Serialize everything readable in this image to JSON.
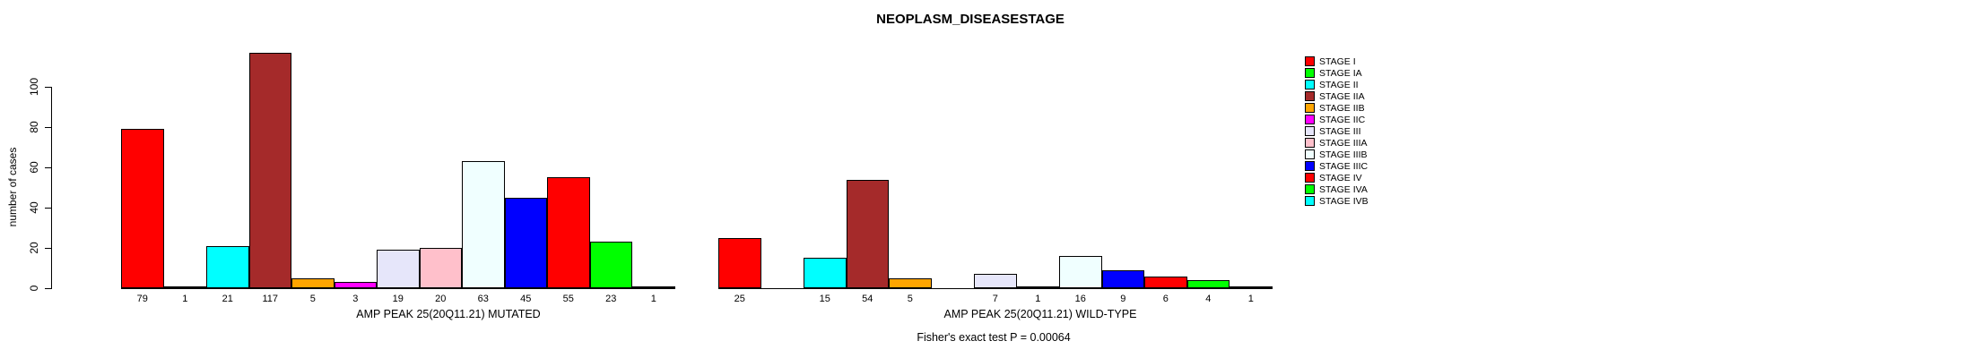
{
  "chart_data": {
    "type": "bar",
    "title": "NEOPLASM_DISEASESTAGE",
    "ylabel": "number of cases",
    "yticks": [
      0,
      20,
      40,
      60,
      80,
      100
    ],
    "ylim": [
      0,
      117
    ],
    "grid": false,
    "legend_position": "right",
    "bar_value_labels": true,
    "categories": [
      "STAGE I",
      "STAGE IA",
      "STAGE II",
      "STAGE IIA",
      "STAGE IIB",
      "STAGE IIC",
      "STAGE III",
      "STAGE IIIA",
      "STAGE IIIB",
      "STAGE IIIC",
      "STAGE IV",
      "STAGE IVA",
      "STAGE IVB"
    ],
    "colors": [
      "#FF0000",
      "#00FF00",
      "#00FFFF",
      "#A52A2A",
      "#FFA500",
      "#FF00FF",
      "#E6E6FA",
      "#FFC0CB",
      "#F0FFFF",
      "#0000FF",
      "#FF0000",
      "#00FF00",
      "#00FFFF"
    ],
    "groups": [
      {
        "label": "AMP PEAK 25(20Q11.21) MUTATED",
        "values": [
          79,
          1,
          21,
          117,
          5,
          3,
          19,
          20,
          63,
          45,
          55,
          23,
          1
        ]
      },
      {
        "label": "AMP PEAK 25(20Q11.21) WILD-TYPE",
        "values": [
          25,
          0,
          15,
          54,
          5,
          0,
          7,
          1,
          16,
          9,
          6,
          4,
          1
        ]
      }
    ],
    "annotation": "Fisher's exact test P = 0.00064",
    "legend": [
      {
        "label": "STAGE I",
        "color": "#FF0000"
      },
      {
        "label": "STAGE IA",
        "color": "#00FF00"
      },
      {
        "label": "STAGE II",
        "color": "#00FFFF"
      },
      {
        "label": "STAGE IIA",
        "color": "#A52A2A"
      },
      {
        "label": "STAGE IIB",
        "color": "#FFA500"
      },
      {
        "label": "STAGE IIC",
        "color": "#FF00FF"
      },
      {
        "label": "STAGE III",
        "color": "#E6E6FA"
      },
      {
        "label": "STAGE IIIA",
        "color": "#FFC0CB"
      },
      {
        "label": "STAGE IIIB",
        "color": "#F0FFFF"
      },
      {
        "label": "STAGE IIIC",
        "color": "#0000FF"
      },
      {
        "label": "STAGE IV",
        "color": "#FF0000"
      },
      {
        "label": "STAGE IVA",
        "color": "#00FF00"
      },
      {
        "label": "STAGE IVB",
        "color": "#00FFFF"
      }
    ]
  }
}
